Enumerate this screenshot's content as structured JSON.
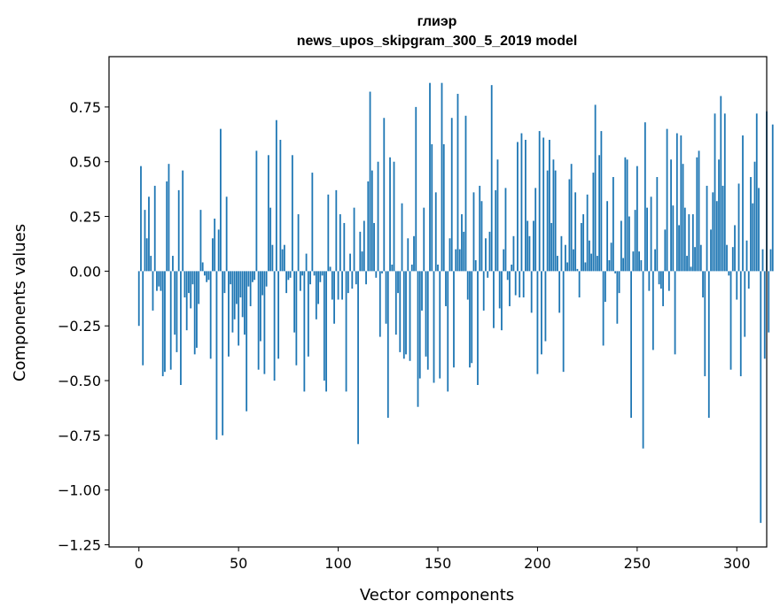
{
  "chart_data": {
    "type": "bar",
    "title_line1": "глиэр",
    "title_line2": "news_upos_skipgram_300_5_2019 model",
    "xlabel": "Vector components",
    "ylabel": "Components values",
    "xlim": [
      -15,
      315
    ],
    "ylim": [
      -1.26,
      0.98
    ],
    "xticks": [
      0,
      50,
      100,
      150,
      200,
      250,
      300
    ],
    "xtick_labels": [
      "0",
      "50",
      "100",
      "150",
      "200",
      "250",
      "300"
    ],
    "yticks": [
      -1.25,
      -1.0,
      -0.75,
      -0.5,
      -0.25,
      0.0,
      0.25,
      0.5,
      0.75
    ],
    "ytick_labels": [
      "−1.25",
      "−1.00",
      "−0.75",
      "−0.50",
      "−0.25",
      "0.00",
      "0.25",
      "0.50",
      "0.75"
    ],
    "grid": false,
    "bar_color": "#1f77b4",
    "values": [
      -0.25,
      0.48,
      -0.43,
      0.28,
      0.15,
      0.34,
      0.07,
      -0.18,
      0.39,
      -0.09,
      -0.07,
      -0.09,
      -0.48,
      -0.46,
      0.41,
      0.49,
      -0.45,
      0.07,
      -0.29,
      -0.37,
      0.37,
      -0.52,
      0.46,
      -0.12,
      -0.27,
      -0.1,
      -0.17,
      -0.06,
      -0.38,
      -0.35,
      -0.15,
      0.28,
      0.04,
      -0.02,
      -0.05,
      -0.04,
      -0.4,
      0.15,
      0.24,
      -0.77,
      0.19,
      0.65,
      -0.75,
      -0.1,
      0.34,
      -0.39,
      -0.06,
      -0.28,
      -0.22,
      -0.15,
      -0.34,
      -0.12,
      -0.21,
      -0.29,
      -0.64,
      -0.07,
      -0.16,
      -0.05,
      -0.04,
      0.55,
      -0.45,
      -0.32,
      -0.11,
      -0.47,
      -0.07,
      0.53,
      0.29,
      0.12,
      -0.5,
      0.69,
      -0.4,
      0.6,
      0.1,
      0.12,
      -0.1,
      -0.04,
      -0.03,
      0.53,
      -0.28,
      -0.43,
      0.26,
      -0.09,
      -0.02,
      -0.55,
      0.08,
      -0.39,
      -0.06,
      0.45,
      -0.02,
      -0.22,
      -0.15,
      -0.05,
      -0.02,
      -0.5,
      -0.55,
      0.35,
      0.02,
      -0.13,
      -0.24,
      0.37,
      -0.13,
      0.26,
      -0.13,
      0.22,
      -0.55,
      -0.1,
      0.08,
      -0.08,
      0.29,
      -0.06,
      -0.79,
      0.18,
      0.09,
      0.23,
      -0.06,
      0.41,
      0.82,
      0.46,
      0.22,
      -0.03,
      0.5,
      -0.3,
      -0.01,
      0.7,
      -0.24,
      -0.67,
      0.52,
      0.03,
      0.5,
      -0.29,
      -0.1,
      -0.37,
      0.31,
      -0.4,
      -0.38,
      0.15,
      -0.41,
      0.03,
      0.16,
      0.75,
      -0.62,
      -0.49,
      -0.18,
      0.29,
      -0.39,
      -0.45,
      0.86,
      0.58,
      -0.51,
      0.36,
      0.03,
      -0.49,
      0.86,
      0.58,
      -0.16,
      -0.55,
      0.15,
      0.7,
      -0.44,
      0.1,
      0.81,
      0.1,
      0.26,
      0.18,
      0.71,
      -0.13,
      -0.44,
      -0.42,
      0.36,
      0.05,
      -0.52,
      0.39,
      0.32,
      -0.18,
      0.15,
      -0.03,
      0.18,
      0.85,
      -0.26,
      0.37,
      0.51,
      -0.17,
      -0.27,
      0.1,
      0.38,
      -0.04,
      -0.16,
      0.03,
      0.16,
      -0.11,
      0.59,
      -0.12,
      0.63,
      -0.12,
      0.6,
      0.23,
      0.16,
      -0.19,
      0.23,
      0.38,
      -0.47,
      0.64,
      -0.38,
      0.61,
      -0.32,
      0.46,
      0.6,
      0.22,
      0.51,
      0.46,
      0.07,
      -0.19,
      0.16,
      -0.46,
      0.12,
      0.04,
      0.42,
      0.49,
      0.1,
      0.36,
      0.01,
      -0.12,
      0.22,
      0.26,
      0.04,
      0.35,
      0.14,
      0.08,
      0.45,
      0.76,
      0.07,
      0.53,
      0.64,
      -0.34,
      -0.14,
      0.32,
      0.05,
      0.13,
      0.43,
      -0.01,
      -0.24,
      -0.1,
      0.23,
      0.06,
      0.52,
      0.51,
      0.25,
      -0.67,
      0.09,
      0.28,
      0.48,
      0.09,
      0.05,
      -0.81,
      0.68,
      0.29,
      -0.09,
      0.34,
      -0.36,
      0.1,
      0.43,
      -0.06,
      -0.08,
      -0.16,
      0.19,
      0.65,
      -0.09,
      0.51,
      0.3,
      -0.38,
      0.63,
      0.21,
      0.62,
      0.49,
      0.29,
      0.07,
      0.26,
      0.02,
      0.26,
      0.11,
      0.52,
      0.55,
      0.12,
      -0.12,
      -0.48,
      0.39,
      -0.67,
      0.19,
      0.36,
      0.72,
      0.32,
      0.51,
      0.8,
      0.39,
      0.72,
      0.12,
      -0.02,
      -0.45,
      0.11,
      0.21,
      -0.13,
      0.4,
      -0.48,
      0.62,
      -0.3,
      0.14,
      -0.08,
      0.43,
      0.31,
      0.5,
      0.72,
      0.38,
      -1.15,
      0.1,
      -0.4,
      0.73,
      -0.28,
      0.1,
      0.67
    ]
  }
}
